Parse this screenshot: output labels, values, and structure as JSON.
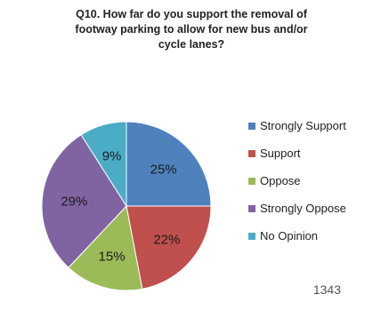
{
  "chart_data": {
    "type": "pie",
    "title_lines": [
      "Q10. How far do you support the removal of",
      "footway parking to allow for new bus and/or",
      "cycle lanes?"
    ],
    "slices": [
      {
        "label": "Strongly Support",
        "value": 25,
        "display": "25%",
        "color": "#4F81BD"
      },
      {
        "label": "Support",
        "value": 22,
        "display": "22%",
        "color": "#C0504D"
      },
      {
        "label": "Oppose",
        "value": 15,
        "display": "15%",
        "color": "#9BBB59"
      },
      {
        "label": "Strongly Oppose",
        "value": 29,
        "display": "29%",
        "color": "#8064A2"
      },
      {
        "label": "No Opinion",
        "value": 9,
        "display": "9%",
        "color": "#4BACC6"
      }
    ],
    "legend_position": "right"
  },
  "slide_number": "1343"
}
